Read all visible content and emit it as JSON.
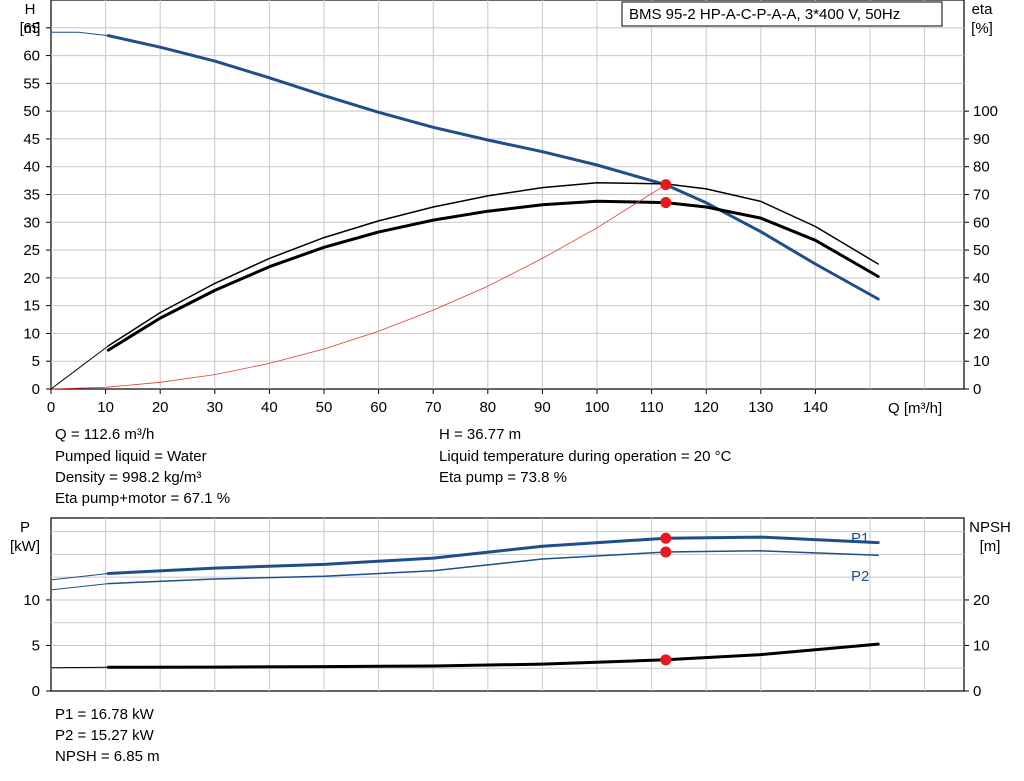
{
  "chart_data": [
    {
      "type": "line",
      "title": "BMS 95-2 HP-A-C-P-A-A, 3*400 V, 50Hz",
      "xlabel": "Q [m³/h]",
      "ylabel_left": [
        "H",
        "[m]"
      ],
      "ylabel_right": [
        "eta",
        "[%]"
      ],
      "xlim": [
        0,
        155
      ],
      "ylim_left": [
        0,
        70
      ],
      "ylim_right": [
        0,
        140
      ],
      "x_ticks": [
        0,
        10,
        20,
        30,
        40,
        50,
        60,
        70,
        80,
        90,
        100,
        110,
        120,
        130,
        140
      ],
      "y_ticks_left": [
        0,
        5,
        10,
        15,
        20,
        25,
        30,
        35,
        40,
        45,
        50,
        55,
        60,
        65
      ],
      "y_ticks_right": [
        0,
        10,
        20,
        30,
        40,
        50,
        60,
        70,
        80,
        90,
        100
      ],
      "grid": true,
      "series": [
        {
          "axis": "left",
          "color": "#1f4e8c",
          "width": 3,
          "x": [
            10.5,
            20,
            30,
            40,
            50,
            60,
            70,
            80,
            90,
            100,
            112.6,
            120,
            130,
            140,
            151.5
          ],
          "y": [
            63.6,
            61.5,
            59,
            56,
            52.8,
            49.8,
            47.1,
            44.8,
            42.7,
            40.3,
            36.77,
            33.5,
            28.3,
            22.5,
            16.2
          ]
        },
        {
          "axis": "left",
          "color": "#1f4e8c",
          "width": 1,
          "x": [
            0,
            5,
            10.5
          ],
          "y": [
            64.2,
            64.2,
            63.6
          ]
        },
        {
          "axis": "right",
          "color": "#000000",
          "width": 1.5,
          "x": [
            10.5,
            20,
            30,
            40,
            50,
            60,
            70,
            80,
            90,
            100,
            112.6,
            120,
            130,
            140,
            151.5
          ],
          "y": [
            15.5,
            27.5,
            38,
            47,
            54.5,
            60.5,
            65.5,
            69.5,
            72.5,
            74.2,
            73.8,
            72,
            67.5,
            58.5,
            45
          ]
        },
        {
          "axis": "right",
          "color": "#000000",
          "width": 3,
          "x": [
            10.5,
            20,
            30,
            40,
            50,
            60,
            70,
            80,
            90,
            100,
            112.6,
            120,
            130,
            140,
            151.5
          ],
          "y": [
            14,
            25.5,
            35.5,
            44,
            51,
            56.5,
            60.8,
            64,
            66.3,
            67.6,
            67.1,
            65.5,
            61.5,
            53.5,
            40.5
          ]
        },
        {
          "axis": "right",
          "color": "#000000",
          "width": 1,
          "x": [
            0,
            10.5
          ],
          "y": [
            0,
            15.5
          ]
        },
        {
          "axis": "left",
          "color": "#e53935",
          "width": 0.8,
          "x": [
            0,
            10,
            20,
            30,
            40,
            50,
            60,
            70,
            80,
            90,
            100,
            112.6
          ],
          "y": [
            0,
            0.3,
            1.2,
            2.6,
            4.6,
            7.2,
            10.4,
            14.2,
            18.5,
            23.5,
            29,
            36.77
          ]
        }
      ],
      "points": [
        {
          "axis": "left",
          "x": 112.6,
          "y": 36.77,
          "color": "#e8191c"
        },
        {
          "axis": "right",
          "x": 112.6,
          "y": 67.1,
          "color": "#e8191c"
        }
      ],
      "annotations": [
        [
          "Q = 112.6 m³/h",
          "Pumped liquid = Water",
          "Density = 998.2 kg/m³",
          "Eta pump+motor = 67.1 %"
        ],
        [
          "H = 36.77 m",
          "Liquid temperature during operation = 20 °C",
          "Eta pump = 73.8 %"
        ]
      ]
    },
    {
      "type": "line",
      "xlim": [
        0,
        155
      ],
      "ylabel_left": [
        "P",
        "[kW]"
      ],
      "ylabel_right": [
        "NPSH",
        "[m]"
      ],
      "ylim_left": [
        0,
        19
      ],
      "ylim_right": [
        0,
        38
      ],
      "x_ticks": [
        0,
        10,
        20,
        30,
        40,
        50,
        60,
        70,
        80,
        90,
        100,
        110,
        120,
        130,
        140
      ],
      "y_ticks_left": [
        0,
        5,
        10
      ],
      "y_ticks_right": [
        0,
        10,
        20
      ],
      "grid": true,
      "series": [
        {
          "name": "P1",
          "axis": "left",
          "color": "#1f4e8c",
          "width": 3,
          "x": [
            10.5,
            30,
            50,
            70,
            90,
            112.6,
            130,
            151.5
          ],
          "y": [
            12.9,
            13.5,
            13.9,
            14.6,
            15.9,
            16.78,
            16.9,
            16.3
          ]
        },
        {
          "axis": "left",
          "color": "#1f4e8c",
          "width": 1,
          "x": [
            0,
            10.5
          ],
          "y": [
            12.2,
            12.9
          ]
        },
        {
          "name": "P2",
          "axis": "left",
          "color": "#1f4e8c",
          "width": 1.5,
          "x": [
            10.5,
            30,
            50,
            70,
            90,
            112.6,
            130,
            151.5
          ],
          "y": [
            11.8,
            12.3,
            12.6,
            13.2,
            14.5,
            15.27,
            15.4,
            14.9
          ]
        },
        {
          "axis": "left",
          "color": "#1f4e8c",
          "width": 1,
          "x": [
            0,
            10.5
          ],
          "y": [
            11.1,
            11.8
          ]
        },
        {
          "name": "NPSH",
          "axis": "right",
          "color": "#000000",
          "width": 3,
          "x": [
            10.5,
            30,
            50,
            70,
            90,
            112.6,
            130,
            151.5
          ],
          "y": [
            5.2,
            5.25,
            5.35,
            5.5,
            5.9,
            6.85,
            8,
            10.3
          ]
        },
        {
          "axis": "right",
          "color": "#000000",
          "width": 1,
          "x": [
            0,
            10.5
          ],
          "y": [
            5.1,
            5.2
          ]
        }
      ],
      "points": [
        {
          "axis": "left",
          "x": 112.6,
          "y": 16.78,
          "color": "#e8191c"
        },
        {
          "axis": "left",
          "x": 112.6,
          "y": 15.27,
          "color": "#e8191c"
        },
        {
          "axis": "right",
          "x": 112.6,
          "y": 6.85,
          "color": "#e8191c"
        }
      ],
      "annotations": [
        [
          "P1 = 16.78 kW",
          "P2 = 15.27 kW",
          "NPSH = 6.85 m"
        ]
      ]
    }
  ]
}
